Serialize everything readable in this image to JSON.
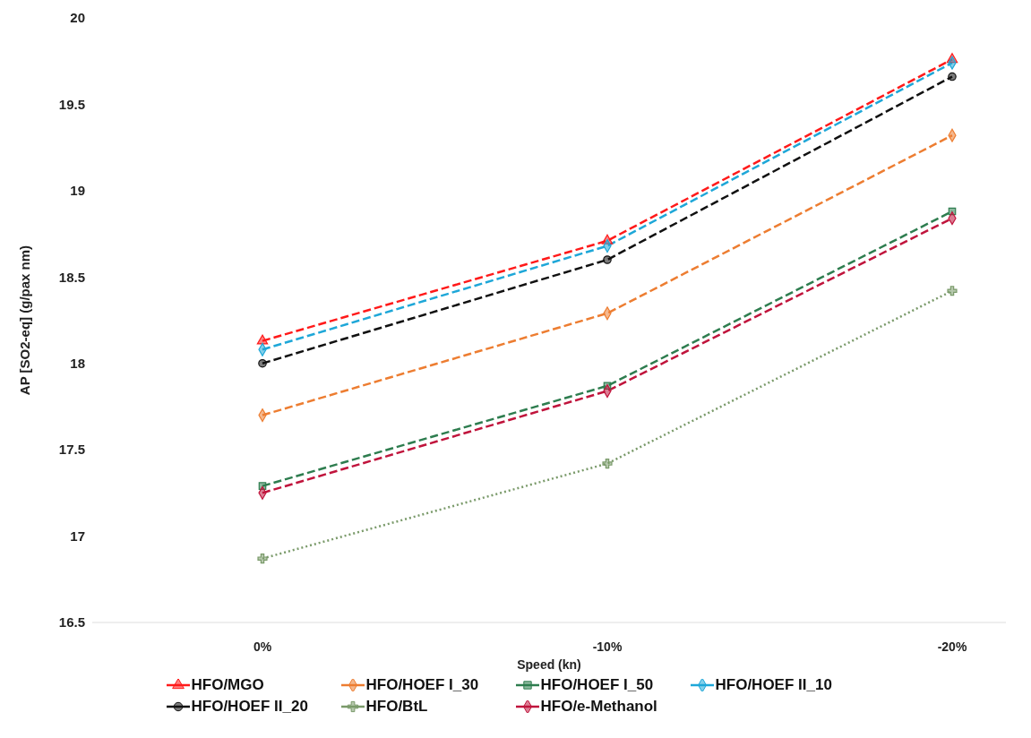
{
  "chart_data": {
    "type": "line",
    "xlabel": "Speed (kn)",
    "ylabel": "AP [SO2-eq] (g/pax nm)",
    "categories": [
      "0%",
      "-10%",
      "-20%"
    ],
    "ylim": [
      16.5,
      20
    ],
    "yticks": [
      16.5,
      17,
      17.5,
      18,
      18.5,
      19,
      19.5,
      20
    ],
    "grid": false,
    "legend": "bottom",
    "series": [
      {
        "name": "HFO/MGO",
        "color": "#ff1a1a",
        "marker": "triangle",
        "line_style": "dashed",
        "values": [
          18.13,
          18.71,
          19.76
        ]
      },
      {
        "name": "HFO/HOEF I_30",
        "color": "#ed7d31",
        "marker": "diamond",
        "line_style": "dashed",
        "values": [
          17.7,
          18.29,
          19.32
        ]
      },
      {
        "name": "HFO/HOEF I_50",
        "color": "#2e7d4f",
        "marker": "square",
        "line_style": "dashed",
        "values": [
          17.29,
          17.87,
          18.88
        ]
      },
      {
        "name": "HFO/HOEF II_10",
        "color": "#1ea7d8",
        "marker": "diamond",
        "line_style": "dashed",
        "values": [
          18.08,
          18.68,
          19.74
        ]
      },
      {
        "name": "HFO/HOEF II_20",
        "color": "#111111",
        "marker": "circle",
        "line_style": "dashed",
        "values": [
          18.0,
          18.6,
          19.66
        ]
      },
      {
        "name": "HFO/BtL",
        "color": "#7a9a6a",
        "marker": "cross",
        "line_style": "dotted",
        "values": [
          16.87,
          17.42,
          18.42
        ]
      },
      {
        "name": "HFO/e-Methanol",
        "color": "#c0143c",
        "marker": "diamond",
        "line_style": "dashed",
        "values": [
          17.25,
          17.84,
          18.84
        ]
      }
    ]
  }
}
